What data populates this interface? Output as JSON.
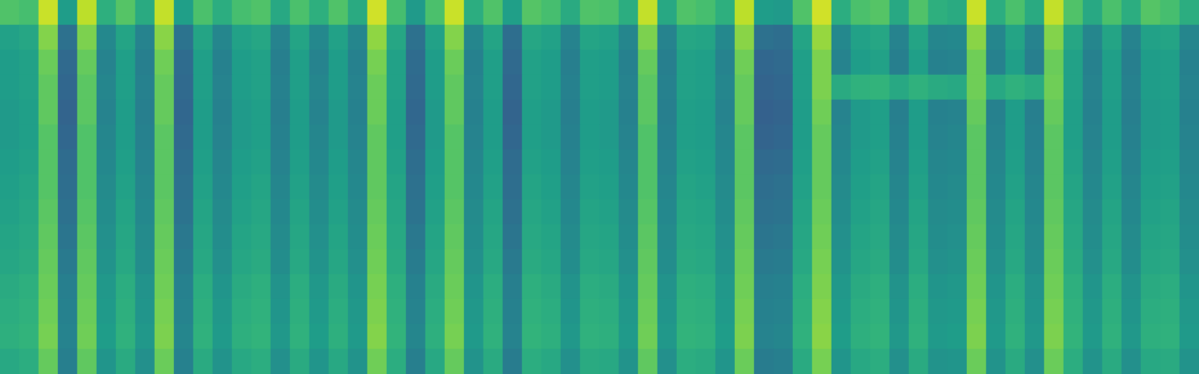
{
  "chart_data": {
    "type": "heatmap",
    "tick_labels": false,
    "grid": false,
    "zlim": [
      0,
      100
    ],
    "cells": [
      [
        72,
        70,
        92,
        55,
        90,
        63,
        73,
        61,
        91,
        56,
        71,
        62,
        70,
        72,
        60,
        71,
        63,
        72,
        61,
        93,
        70,
        54,
        71,
        92,
        62,
        72,
        56,
        73,
        70,
        61,
        72,
        71,
        62,
        91,
        60,
        72,
        70,
        63,
        90,
        55,
        54,
        72,
        93,
        62,
        71,
        73,
        60,
        72,
        63,
        61,
        92,
        62,
        71,
        61,
        91,
        72,
        60,
        71,
        62,
        73,
        70,
        62
      ],
      [
        57,
        59,
        81,
        37,
        80,
        47,
        58,
        45,
        82,
        38,
        58,
        46,
        57,
        59,
        45,
        58,
        47,
        57,
        46,
        83,
        59,
        37,
        57,
        81,
        46,
        58,
        36,
        59,
        57,
        45,
        58,
        57,
        46,
        80,
        45,
        59,
        58,
        47,
        82,
        37,
        36,
        58,
        84,
        47,
        57,
        59,
        45,
        58,
        46,
        47,
        82,
        46,
        58,
        45,
        81,
        59,
        46,
        58,
        45,
        57,
        58,
        46
      ],
      [
        55,
        57,
        77,
        34,
        76,
        45,
        56,
        43,
        78,
        35,
        56,
        44,
        55,
        57,
        43,
        56,
        45,
        55,
        44,
        79,
        57,
        35,
        55,
        77,
        44,
        56,
        34,
        57,
        55,
        43,
        56,
        55,
        44,
        76,
        43,
        57,
        56,
        45,
        78,
        33,
        34,
        56,
        80,
        45,
        55,
        57,
        43,
        56,
        44,
        45,
        78,
        44,
        56,
        43,
        77,
        57,
        44,
        56,
        43,
        55,
        56,
        44
      ],
      [
        55,
        57,
        75,
        33,
        74,
        46,
        56,
        44,
        76,
        34,
        56,
        45,
        55,
        57,
        44,
        56,
        46,
        55,
        45,
        77,
        57,
        34,
        55,
        75,
        45,
        56,
        33,
        57,
        55,
        44,
        56,
        55,
        45,
        74,
        44,
        57,
        56,
        46,
        76,
        32,
        33,
        56,
        80,
        61,
        64,
        65,
        60,
        64,
        61,
        60,
        78,
        60,
        64,
        61,
        78,
        57,
        45,
        56,
        44,
        55,
        56,
        45
      ],
      [
        54,
        56,
        75,
        32,
        74,
        45,
        55,
        43,
        76,
        33,
        55,
        44,
        54,
        56,
        43,
        55,
        45,
        54,
        44,
        77,
        56,
        33,
        54,
        75,
        44,
        55,
        32,
        56,
        54,
        43,
        55,
        54,
        44,
        74,
        43,
        56,
        55,
        45,
        76,
        31,
        32,
        55,
        78,
        45,
        54,
        56,
        43,
        55,
        44,
        45,
        76,
        44,
        55,
        43,
        76,
        56,
        44,
        55,
        43,
        54,
        55,
        44
      ],
      [
        54,
        56,
        73,
        33,
        72,
        46,
        55,
        44,
        74,
        34,
        55,
        45,
        54,
        56,
        44,
        55,
        46,
        54,
        45,
        75,
        56,
        34,
        54,
        73,
        45,
        55,
        33,
        56,
        54,
        44,
        55,
        54,
        45,
        72,
        44,
        56,
        55,
        46,
        74,
        32,
        33,
        55,
        76,
        46,
        54,
        56,
        44,
        55,
        45,
        46,
        74,
        45,
        55,
        44,
        74,
        56,
        45,
        55,
        44,
        54,
        55,
        45
      ],
      [
        55,
        57,
        73,
        35,
        72,
        47,
        56,
        45,
        74,
        36,
        56,
        46,
        55,
        57,
        45,
        56,
        47,
        55,
        46,
        75,
        57,
        36,
        55,
        73,
        46,
        56,
        35,
        57,
        55,
        45,
        56,
        55,
        46,
        72,
        45,
        57,
        56,
        47,
        74,
        34,
        35,
        56,
        76,
        47,
        55,
        57,
        45,
        56,
        46,
        47,
        74,
        46,
        56,
        45,
        74,
        57,
        46,
        56,
        45,
        55,
        56,
        46
      ],
      [
        56,
        58,
        73,
        36,
        72,
        48,
        57,
        46,
        74,
        37,
        57,
        47,
        56,
        58,
        46,
        57,
        48,
        56,
        47,
        75,
        58,
        37,
        56,
        73,
        47,
        57,
        36,
        58,
        56,
        46,
        57,
        56,
        47,
        72,
        46,
        58,
        57,
        48,
        74,
        36,
        37,
        57,
        76,
        48,
        56,
        58,
        46,
        57,
        47,
        48,
        74,
        47,
        57,
        46,
        74,
        58,
        47,
        57,
        46,
        56,
        57,
        47
      ],
      [
        57,
        59,
        74,
        37,
        73,
        49,
        58,
        47,
        75,
        38,
        58,
        48,
        57,
        59,
        47,
        58,
        49,
        57,
        48,
        76,
        59,
        38,
        57,
        74,
        48,
        58,
        37,
        59,
        57,
        47,
        58,
        57,
        48,
        73,
        47,
        59,
        58,
        49,
        75,
        37,
        38,
        58,
        77,
        49,
        57,
        59,
        47,
        58,
        48,
        49,
        75,
        48,
        58,
        47,
        75,
        59,
        48,
        58,
        47,
        57,
        58,
        48
      ],
      [
        58,
        60,
        75,
        39,
        74,
        50,
        59,
        48,
        76,
        40,
        59,
        49,
        58,
        60,
        48,
        59,
        50,
        58,
        49,
        77,
        60,
        40,
        58,
        75,
        49,
        59,
        39,
        60,
        58,
        48,
        59,
        58,
        49,
        74,
        48,
        60,
        59,
        50,
        76,
        39,
        40,
        59,
        78,
        50,
        58,
        60,
        48,
        59,
        49,
        50,
        76,
        49,
        59,
        48,
        76,
        60,
        49,
        59,
        48,
        58,
        59,
        49
      ],
      [
        59,
        61,
        76,
        41,
        75,
        51,
        60,
        49,
        77,
        42,
        60,
        50,
        59,
        61,
        49,
        60,
        51,
        59,
        50,
        78,
        61,
        42,
        59,
        76,
        50,
        60,
        41,
        61,
        59,
        49,
        60,
        59,
        50,
        75,
        49,
        61,
        60,
        51,
        77,
        41,
        42,
        60,
        79,
        51,
        59,
        61,
        49,
        60,
        50,
        51,
        77,
        50,
        60,
        49,
        77,
        61,
        50,
        60,
        49,
        59,
        60,
        50
      ],
      [
        61,
        63,
        77,
        43,
        76,
        53,
        62,
        51,
        78,
        44,
        62,
        52,
        61,
        63,
        51,
        62,
        53,
        61,
        52,
        79,
        63,
        44,
        61,
        77,
        52,
        62,
        43,
        63,
        61,
        51,
        62,
        61,
        52,
        76,
        51,
        63,
        62,
        53,
        78,
        43,
        44,
        62,
        80,
        53,
        61,
        63,
        51,
        62,
        52,
        53,
        78,
        52,
        62,
        51,
        78,
        63,
        52,
        62,
        51,
        61,
        62,
        52
      ],
      [
        62,
        64,
        78,
        44,
        77,
        54,
        63,
        52,
        79,
        45,
        63,
        53,
        62,
        64,
        52,
        63,
        54,
        62,
        53,
        80,
        64,
        45,
        62,
        78,
        53,
        63,
        44,
        64,
        62,
        52,
        63,
        62,
        53,
        77,
        52,
        64,
        63,
        54,
        79,
        44,
        45,
        63,
        81,
        54,
        62,
        64,
        52,
        63,
        53,
        54,
        79,
        53,
        63,
        52,
        79,
        64,
        53,
        63,
        52,
        62,
        63,
        53
      ],
      [
        63,
        65,
        79,
        45,
        78,
        55,
        64,
        53,
        80,
        46,
        64,
        54,
        63,
        65,
        53,
        64,
        55,
        63,
        54,
        81,
        65,
        46,
        63,
        79,
        54,
        64,
        45,
        65,
        63,
        53,
        64,
        63,
        54,
        78,
        53,
        65,
        64,
        55,
        80,
        45,
        46,
        64,
        82,
        55,
        63,
        65,
        53,
        64,
        54,
        55,
        80,
        54,
        64,
        53,
        80,
        65,
        54,
        64,
        53,
        63,
        64,
        54
      ],
      [
        60,
        62,
        76,
        43,
        75,
        52,
        61,
        50,
        77,
        44,
        61,
        51,
        60,
        62,
        50,
        61,
        52,
        60,
        51,
        78,
        62,
        43,
        60,
        76,
        51,
        61,
        42,
        62,
        60,
        50,
        61,
        60,
        51,
        75,
        50,
        62,
        61,
        52,
        77,
        42,
        43,
        61,
        79,
        52,
        60,
        62,
        50,
        61,
        51,
        52,
        77,
        51,
        61,
        50,
        77,
        62,
        51,
        61,
        50,
        60,
        61,
        51
      ]
    ]
  }
}
